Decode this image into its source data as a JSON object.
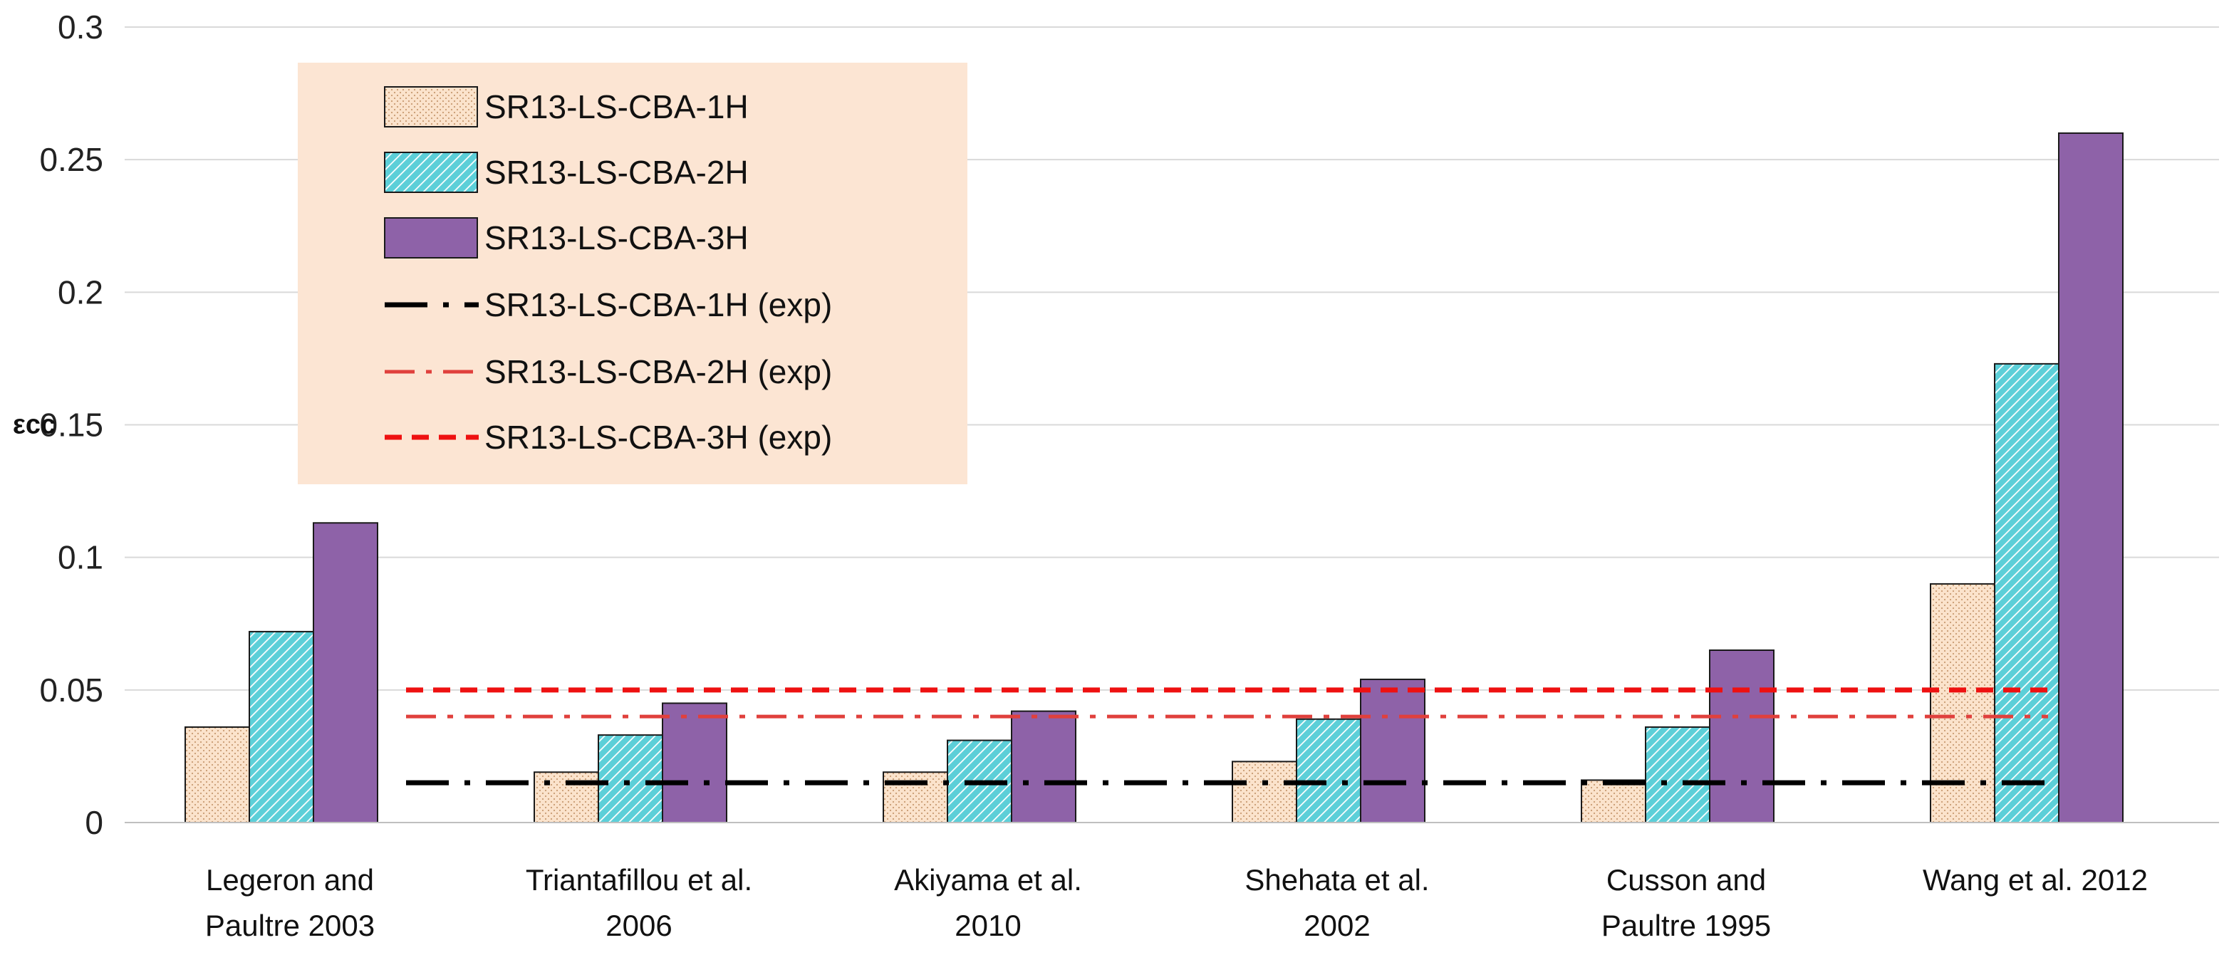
{
  "chart_data": {
    "type": "bar",
    "title": "",
    "xlabel": "",
    "ylabel": "εcc",
    "ylim": [
      0,
      0.3
    ],
    "yticks": [
      0,
      0.05,
      0.1,
      0.15,
      0.2,
      0.25,
      0.3
    ],
    "ytick_labels": [
      "0",
      "0.05",
      "0.1",
      "0.15",
      "0.2",
      "0.25",
      "0.3"
    ],
    "grid": true,
    "legend_position": "top-left",
    "categories": [
      [
        "Legeron and",
        "Paultre 2003"
      ],
      [
        "Triantafillou et al.",
        "2006"
      ],
      [
        "Akiyama et al.",
        "2010"
      ],
      [
        "Shehata et al.",
        "2002"
      ],
      [
        "Cusson and",
        "Paultre 1995"
      ],
      [
        "Wang et al. 2012"
      ]
    ],
    "series": [
      {
        "name": "SR13-LS-CBA-1H",
        "values": [
          0.036,
          0.019,
          0.019,
          0.023,
          0.016,
          0.09
        ],
        "fill": "#fbe3cc",
        "pattern": "dots"
      },
      {
        "name": "SR13-LS-CBA-2H",
        "values": [
          0.072,
          0.033,
          0.031,
          0.039,
          0.036,
          0.173
        ],
        "fill": "#5ccfd8",
        "pattern": "hatch"
      },
      {
        "name": "SR13-LS-CBA-3H",
        "values": [
          0.113,
          0.045,
          0.042,
          0.054,
          0.065,
          0.26
        ],
        "fill": "#8e62a8",
        "pattern": "solid"
      }
    ],
    "reference_lines": [
      {
        "name": "SR13-LS-CBA-1H (exp)",
        "value": 0.015,
        "color": "#000000",
        "style": "long-dash-dot"
      },
      {
        "name": "SR13-LS-CBA-2H (exp)",
        "value": 0.04,
        "color": "#e0403c",
        "style": "dash-dot"
      },
      {
        "name": "SR13-LS-CBA-3H (exp)",
        "value": 0.05,
        "color": "#ee1111",
        "style": "dash"
      }
    ],
    "legend_background": "#fce5d3"
  }
}
